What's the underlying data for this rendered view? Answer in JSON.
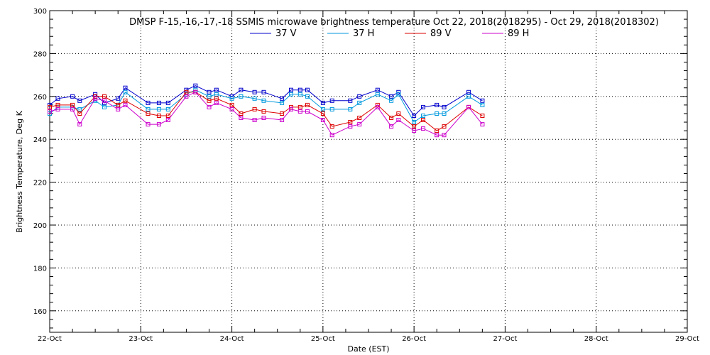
{
  "chart_data": {
    "type": "line",
    "title": "DMSP F-15,-16,-17,-18 SSMIS microwave brightness temperature Oct 22, 2018(2018295) - Oct 29, 2018(2018302)",
    "xlabel": "Date (EST)",
    "ylabel": "Brightness Temperature, Deg K",
    "xlim": [
      0,
      7
    ],
    "ylim": [
      150,
      300
    ],
    "xticks": [
      {
        "value": 0,
        "label": "22-Oct"
      },
      {
        "value": 1,
        "label": "23-Oct"
      },
      {
        "value": 2,
        "label": "24-Oct"
      },
      {
        "value": 3,
        "label": "25-Oct"
      },
      {
        "value": 4,
        "label": "26-Oct"
      },
      {
        "value": 5,
        "label": "27-Oct"
      },
      {
        "value": 6,
        "label": "28-Oct"
      },
      {
        "value": 7,
        "label": "29-Oct"
      }
    ],
    "yticks": [
      {
        "value": 160,
        "label": "160"
      },
      {
        "value": 180,
        "label": "180"
      },
      {
        "value": 200,
        "label": "200"
      },
      {
        "value": 220,
        "label": "220"
      },
      {
        "value": 240,
        "label": "240"
      },
      {
        "value": 260,
        "label": "260"
      },
      {
        "value": 280,
        "label": "280"
      },
      {
        "value": 300,
        "label": "300"
      }
    ],
    "grid": true,
    "x": [
      0.0,
      0.09,
      0.25,
      0.33,
      0.5,
      0.6,
      0.75,
      0.83,
      1.08,
      1.2,
      1.3,
      1.5,
      1.6,
      1.75,
      1.83,
      2.0,
      2.1,
      2.25,
      2.35,
      2.55,
      2.65,
      2.75,
      2.83,
      3.0,
      3.1,
      3.3,
      3.4,
      3.6,
      3.75,
      3.83,
      4.0,
      4.1,
      4.25,
      4.33,
      4.6,
      4.75
    ],
    "series": [
      {
        "name": "37 V",
        "color": "#0000cc",
        "values": [
          256,
          259,
          260,
          258,
          261,
          257,
          259,
          264,
          257,
          257,
          257,
          263,
          265,
          262,
          263,
          260,
          263,
          262,
          262,
          259,
          263,
          263,
          263,
          257,
          258,
          258,
          260,
          263,
          260,
          262,
          251,
          255,
          256,
          255,
          262,
          258
        ]
      },
      {
        "name": "37 H",
        "color": "#0099dd",
        "values": [
          252,
          255,
          255,
          254,
          258,
          255,
          256,
          262,
          254,
          254,
          254,
          261,
          263,
          260,
          261,
          259,
          260,
          259,
          258,
          257,
          261,
          261,
          260,
          254,
          254,
          254,
          257,
          261,
          258,
          261,
          248,
          251,
          252,
          252,
          260,
          256
        ]
      },
      {
        "name": "89 V",
        "color": "#dd0000",
        "values": [
          255,
          256,
          256,
          252,
          260,
          260,
          256,
          258,
          252,
          251,
          251,
          262,
          262,
          258,
          259,
          256,
          252,
          254,
          253,
          252,
          255,
          255,
          256,
          252,
          246,
          248,
          250,
          256,
          250,
          252,
          246,
          249,
          244,
          246,
          255,
          251
        ]
      },
      {
        "name": "89 H",
        "color": "#cc00cc",
        "values": [
          253,
          254,
          254,
          247,
          259,
          258,
          254,
          256,
          247,
          247,
          249,
          260,
          262,
          255,
          257,
          254,
          250,
          249,
          250,
          249,
          254,
          253,
          253,
          249,
          242,
          246,
          247,
          255,
          246,
          249,
          244,
          245,
          242,
          242,
          255,
          247
        ]
      }
    ],
    "legend_position": "top-center"
  }
}
